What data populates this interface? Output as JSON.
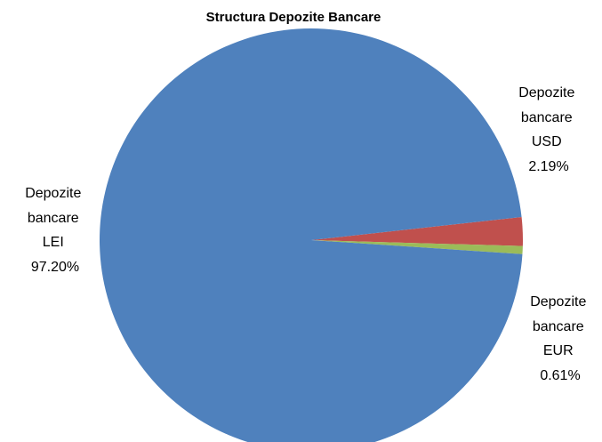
{
  "chart_data": {
    "type": "pie",
    "title": "Structura Depozite Bancare",
    "slices": [
      {
        "name": "Depozite bancare LEI",
        "value": 97.2,
        "label": "97.20%",
        "color": "#4F81BD"
      },
      {
        "name": "Depozite bancare USD",
        "value": 2.19,
        "label": "2.19%",
        "color": "#C0504D"
      },
      {
        "name": "Depozite bancare EUR",
        "value": 0.61,
        "label": "0.61%",
        "color": "#9BBB59"
      }
    ],
    "legend": "none"
  }
}
